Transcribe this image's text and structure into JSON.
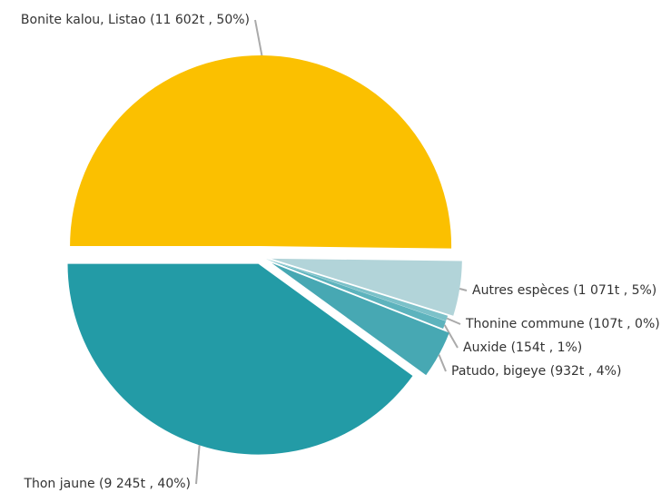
{
  "chart_data": {
    "type": "pie",
    "categories": [
      "Bonite kalou, Listao",
      "Autres espèces",
      "Thonine commune",
      "Auxide",
      "Patudo, bigeye",
      "Thon jaune"
    ],
    "values": [
      11602,
      1071,
      107,
      154,
      932,
      9245
    ],
    "value_labels": [
      "Bonite kalou, Listao (11 602t , 50%)",
      "Autres espèces (1 071t , 5%)",
      "Thonine commune (107t , 0%)",
      "Auxide (154t , 1%)",
      "Patudo, bigeye (932t , 4%)",
      "Thon jaune (9 245t , 40%)"
    ],
    "colors": [
      "#fbc000",
      "#b2d4d9",
      "#7cc1c9",
      "#5db3bd",
      "#47a8b3",
      "#239ba6"
    ]
  }
}
